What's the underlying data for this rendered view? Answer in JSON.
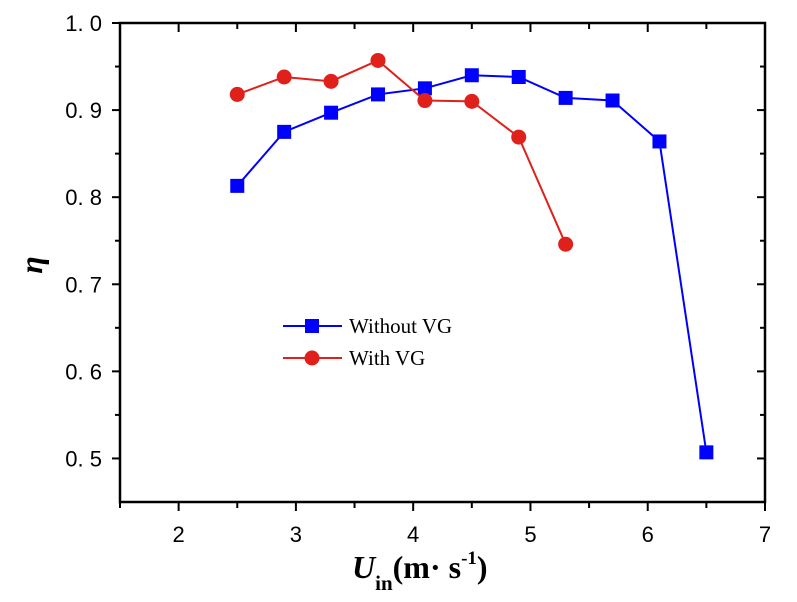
{
  "chart_data": {
    "type": "line",
    "title": "",
    "xlabel": {
      "main": "U",
      "sub": "in",
      "unit_open": "(m·  s",
      "unit_sup": "-1",
      "unit_close": ")"
    },
    "ylabel": "η",
    "xlim": [
      1.5,
      7
    ],
    "ylim": [
      0.45,
      1.0
    ],
    "xticks": [
      2,
      3,
      4,
      5,
      6,
      7
    ],
    "xtick_labels": [
      "2",
      "3",
      "4",
      "5",
      "6",
      "7"
    ],
    "yticks": [
      0.5,
      0.6,
      0.7,
      0.8,
      0.9,
      1.0
    ],
    "ytick_labels": [
      "0. 5",
      "0. 6",
      "0. 7",
      "0. 8",
      "0. 9",
      "1. 0"
    ],
    "grid": false,
    "legend_position": "center-left",
    "series": [
      {
        "name": "Without VG",
        "color": "#0000ff",
        "marker": "square",
        "x": [
          2.5,
          2.9,
          3.3,
          3.7,
          4.1,
          4.5,
          4.9,
          5.3,
          5.7,
          6.1,
          6.5
        ],
        "values": [
          0.813,
          0.875,
          0.897,
          0.918,
          0.925,
          0.94,
          0.938,
          0.914,
          0.911,
          0.864,
          0.507
        ]
      },
      {
        "name": "With VG",
        "color": "#e0201a",
        "marker": "circle",
        "x": [
          2.5,
          2.9,
          3.3,
          3.7,
          4.1,
          4.5,
          4.9,
          5.3
        ],
        "values": [
          0.918,
          0.938,
          0.933,
          0.957,
          0.911,
          0.91,
          0.869,
          0.746
        ]
      }
    ]
  }
}
